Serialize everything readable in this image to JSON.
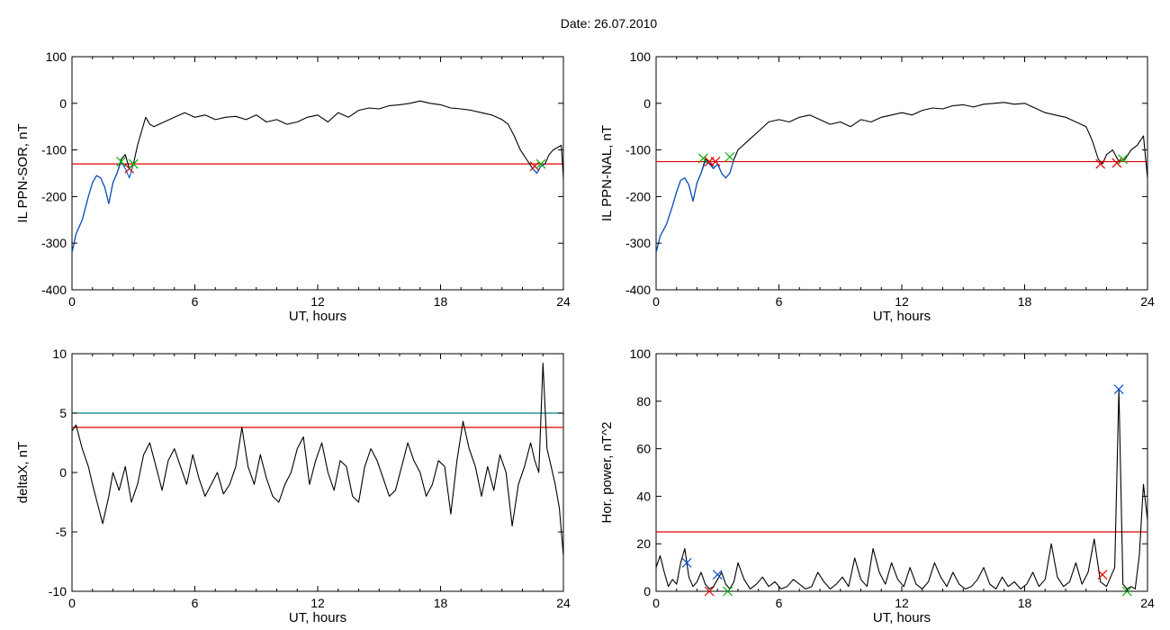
{
  "figure": {
    "title": "Date:  26.07.2010"
  },
  "colors": {
    "black": "#000000",
    "red": "#e00000",
    "blue": "#0050d0",
    "green": "#00b000",
    "teal": "#008080"
  },
  "chart_data": [
    {
      "type": "line",
      "id": "tl",
      "ylabel": "IL PPN-SOR, nT",
      "xlabel": "UT, hours",
      "xlim": [
        0,
        24
      ],
      "ylim": [
        -400,
        100
      ],
      "xticks": [
        0,
        6,
        12,
        18,
        24
      ],
      "xtick_labels": [
        "0",
        "6",
        "12",
        "18",
        "24"
      ],
      "yticks": [
        -400,
        -300,
        -200,
        -100,
        0,
        100
      ],
      "ytick_labels": [
        "-400",
        "-300",
        "-200",
        "-100",
        "0",
        "100"
      ],
      "threshold": -130,
      "series": [
        {
          "color": "#000000",
          "x": [
            0,
            0.2,
            0.5,
            0.8,
            1.0,
            1.2,
            1.4,
            1.6,
            1.8,
            2.0,
            2.2,
            2.4,
            2.6,
            2.8,
            3.0,
            3.2,
            3.4,
            3.6,
            3.8,
            4.0,
            4.5,
            5.0,
            5.5,
            6.0,
            6.5,
            7.0,
            7.5,
            8.0,
            8.5,
            9.0,
            9.5,
            10.0,
            10.5,
            11.0,
            11.5,
            12.0,
            12.5,
            13.0,
            13.5,
            14.0,
            14.5,
            15.0,
            15.5,
            16.0,
            16.5,
            17.0,
            17.5,
            18.0,
            18.5,
            19.0,
            19.5,
            20.0,
            20.5,
            21.0,
            21.3,
            21.6,
            21.9,
            22.2,
            22.5,
            22.7,
            22.9,
            23.1,
            23.3,
            23.5,
            23.7,
            23.9,
            24.0
          ],
          "y": [
            -320,
            -280,
            -250,
            -200,
            -170,
            -155,
            -160,
            -180,
            -215,
            -170,
            -150,
            -120,
            -110,
            -140,
            -130,
            -90,
            -60,
            -30,
            -45,
            -50,
            -40,
            -30,
            -20,
            -30,
            -25,
            -35,
            -30,
            -28,
            -35,
            -25,
            -40,
            -35,
            -45,
            -40,
            -30,
            -25,
            -40,
            -20,
            -30,
            -15,
            -10,
            -12,
            -5,
            -3,
            0,
            5,
            0,
            -3,
            -10,
            -12,
            -15,
            -20,
            -25,
            -35,
            -45,
            -70,
            -100,
            -120,
            -140,
            -150,
            -135,
            -130,
            -110,
            -100,
            -95,
            -90,
            -160
          ]
        },
        {
          "color": "#0050d0",
          "x": [
            0,
            0.2,
            0.5,
            0.8,
            1.0,
            1.2,
            1.4,
            1.6,
            1.8,
            2.0,
            2.2,
            2.4,
            2.6,
            2.8,
            3.0
          ],
          "y": [
            -320,
            -280,
            -250,
            -200,
            -170,
            -155,
            -160,
            -180,
            -215,
            -170,
            -150,
            -125,
            -140,
            -160,
            -130
          ]
        },
        {
          "color": "#0050d0",
          "x": [
            22.5,
            22.7,
            22.9,
            23.1
          ],
          "y": [
            -140,
            -150,
            -135,
            -130
          ]
        }
      ],
      "markers": [
        {
          "x": 2.4,
          "y": -125,
          "color": "#00b000"
        },
        {
          "x": 2.8,
          "y": -140,
          "color": "#e00000"
        },
        {
          "x": 3.0,
          "y": -130,
          "color": "#00b000"
        },
        {
          "x": 22.6,
          "y": -135,
          "color": "#e00000"
        },
        {
          "x": 22.9,
          "y": -130,
          "color": "#00b000"
        }
      ]
    },
    {
      "type": "line",
      "id": "tr",
      "ylabel": "IL PPN-NAL, nT",
      "xlabel": "UT, hours",
      "xlim": [
        0,
        24
      ],
      "ylim": [
        -400,
        100
      ],
      "xticks": [
        0,
        6,
        12,
        18,
        24
      ],
      "xtick_labels": [
        "0",
        "6",
        "12",
        "18",
        "24"
      ],
      "yticks": [
        -400,
        -300,
        -200,
        -100,
        0,
        100
      ],
      "ytick_labels": [
        "-400",
        "-300",
        "-200",
        "-100",
        "0",
        "100"
      ],
      "threshold": -125,
      "series": [
        {
          "color": "#000000",
          "x": [
            0,
            0.2,
            0.5,
            0.8,
            1.0,
            1.2,
            1.4,
            1.6,
            1.8,
            2.0,
            2.2,
            2.4,
            2.6,
            2.8,
            3.0,
            3.2,
            3.4,
            3.6,
            3.8,
            4.0,
            4.5,
            5.0,
            5.5,
            6.0,
            6.5,
            7.0,
            7.5,
            8.0,
            8.5,
            9.0,
            9.5,
            10.0,
            10.5,
            11.0,
            11.5,
            12.0,
            12.5,
            13.0,
            13.5,
            14.0,
            14.5,
            15.0,
            15.5,
            16.0,
            16.5,
            17.0,
            17.5,
            18.0,
            18.5,
            19.0,
            19.5,
            20.0,
            20.5,
            21.0,
            21.3,
            21.6,
            21.8,
            22.0,
            22.3,
            22.6,
            22.9,
            23.2,
            23.5,
            23.8,
            24.0
          ],
          "y": [
            -320,
            -285,
            -260,
            -220,
            -190,
            -165,
            -160,
            -175,
            -210,
            -170,
            -150,
            -120,
            -125,
            -140,
            -130,
            -150,
            -160,
            -150,
            -120,
            -100,
            -80,
            -60,
            -40,
            -35,
            -40,
            -30,
            -25,
            -35,
            -45,
            -40,
            -50,
            -35,
            -40,
            -30,
            -25,
            -20,
            -25,
            -15,
            -10,
            -12,
            -5,
            -3,
            -8,
            -2,
            0,
            2,
            -2,
            0,
            -10,
            -20,
            -25,
            -30,
            -40,
            -50,
            -80,
            -120,
            -130,
            -110,
            -100,
            -125,
            -120,
            -100,
            -90,
            -70,
            -160
          ]
        },
        {
          "color": "#0050d0",
          "x": [
            0,
            0.2,
            0.5,
            0.8,
            1.0,
            1.2,
            1.4,
            1.6,
            1.8,
            2.0,
            2.2,
            2.4,
            2.6,
            2.8,
            3.0,
            3.2,
            3.4,
            3.6,
            3.8
          ],
          "y": [
            -320,
            -285,
            -260,
            -220,
            -190,
            -165,
            -160,
            -175,
            -210,
            -170,
            -150,
            -125,
            -130,
            -140,
            -130,
            -150,
            -160,
            -150,
            -120
          ]
        }
      ],
      "markers": [
        {
          "x": 2.3,
          "y": -118,
          "color": "#00b000"
        },
        {
          "x": 2.6,
          "y": -125,
          "color": "#e00000"
        },
        {
          "x": 2.9,
          "y": -125,
          "color": "#e00000"
        },
        {
          "x": 3.6,
          "y": -115,
          "color": "#00b000"
        },
        {
          "x": 21.7,
          "y": -130,
          "color": "#e00000"
        },
        {
          "x": 22.5,
          "y": -128,
          "color": "#e00000"
        },
        {
          "x": 22.8,
          "y": -120,
          "color": "#00b000"
        }
      ]
    },
    {
      "type": "line",
      "id": "bl",
      "ylabel": "deltaX, nT",
      "xlabel": "UT, hours",
      "xlim": [
        0,
        24
      ],
      "ylim": [
        -10,
        10
      ],
      "xticks": [
        0,
        6,
        12,
        18,
        24
      ],
      "xtick_labels": [
        "0",
        "6",
        "12",
        "18",
        "24"
      ],
      "yticks": [
        -10,
        -5,
        0,
        5,
        10
      ],
      "ytick_labels": [
        "-10",
        "-5",
        "0",
        "5",
        "10"
      ],
      "threshold": 3.8,
      "threshold2": 5.0,
      "series": [
        {
          "color": "#000000",
          "x": [
            0,
            0.2,
            0.5,
            0.8,
            1.0,
            1.3,
            1.5,
            1.8,
            2.0,
            2.3,
            2.6,
            2.9,
            3.2,
            3.5,
            3.8,
            4.1,
            4.4,
            4.7,
            5.0,
            5.3,
            5.6,
            5.9,
            6.2,
            6.5,
            6.8,
            7.1,
            7.4,
            7.7,
            8.0,
            8.3,
            8.6,
            8.9,
            9.2,
            9.5,
            9.8,
            10.1,
            10.4,
            10.7,
            11.0,
            11.3,
            11.6,
            11.9,
            12.2,
            12.5,
            12.8,
            13.1,
            13.4,
            13.7,
            14.0,
            14.3,
            14.6,
            14.9,
            15.2,
            15.5,
            15.8,
            16.1,
            16.4,
            16.7,
            17.0,
            17.3,
            17.6,
            17.9,
            18.2,
            18.5,
            18.8,
            19.1,
            19.4,
            19.7,
            20.0,
            20.3,
            20.6,
            20.9,
            21.2,
            21.5,
            21.8,
            22.1,
            22.4,
            22.6,
            22.8,
            23.0,
            23.2,
            23.4,
            23.6,
            23.8,
            24.0
          ],
          "y": [
            3.5,
            4.0,
            2.0,
            0.5,
            -1.0,
            -3.0,
            -4.3,
            -2.0,
            0.0,
            -1.5,
            0.5,
            -2.5,
            -1.0,
            1.5,
            2.5,
            0.5,
            -1.5,
            1.0,
            2.0,
            0.5,
            -1.0,
            1.5,
            -0.5,
            -2.0,
            -1.0,
            0.0,
            -1.8,
            -1.0,
            0.5,
            3.8,
            0.5,
            -1.0,
            1.5,
            -0.5,
            -2.0,
            -2.5,
            -1.0,
            0.0,
            2.0,
            3.0,
            -1.0,
            1.0,
            2.5,
            0.0,
            -1.5,
            1.0,
            0.5,
            -2.0,
            -2.5,
            0.5,
            2.0,
            1.0,
            -0.5,
            -2.0,
            -1.5,
            0.5,
            2.5,
            1.0,
            0.0,
            -2.0,
            -1.0,
            1.0,
            0.5,
            -3.5,
            1.0,
            4.3,
            2.0,
            0.5,
            -2.0,
            0.5,
            -1.5,
            1.5,
            0.0,
            -4.5,
            -1.0,
            0.5,
            2.5,
            1.0,
            0.0,
            9.2,
            2.0,
            0.5,
            -1.0,
            -3.0,
            -7.0
          ]
        }
      ],
      "markers": []
    },
    {
      "type": "line",
      "id": "br",
      "ylabel": "Hor. power, nT^2",
      "xlabel": "UT, hours",
      "xlim": [
        0,
        24
      ],
      "ylim": [
        0,
        100
      ],
      "xticks": [
        0,
        6,
        12,
        18,
        24
      ],
      "xtick_labels": [
        "0",
        "6",
        "12",
        "18",
        "24"
      ],
      "yticks": [
        0,
        20,
        40,
        60,
        80,
        100
      ],
      "ytick_labels": [
        "0",
        "20",
        "40",
        "60",
        "80",
        "100"
      ],
      "threshold": 25,
      "series": [
        {
          "color": "#000000",
          "x": [
            0,
            0.2,
            0.4,
            0.6,
            0.8,
            1.0,
            1.2,
            1.4,
            1.6,
            1.8,
            2.0,
            2.2,
            2.4,
            2.6,
            2.8,
            3.0,
            3.2,
            3.4,
            3.6,
            3.8,
            4.0,
            4.3,
            4.6,
            4.9,
            5.2,
            5.5,
            5.8,
            6.1,
            6.4,
            6.7,
            7.0,
            7.3,
            7.6,
            7.9,
            8.2,
            8.5,
            8.8,
            9.1,
            9.4,
            9.7,
            10.0,
            10.3,
            10.6,
            10.9,
            11.2,
            11.5,
            11.8,
            12.1,
            12.4,
            12.7,
            13.0,
            13.3,
            13.6,
            13.9,
            14.2,
            14.5,
            14.8,
            15.1,
            15.4,
            15.7,
            16.0,
            16.3,
            16.6,
            16.9,
            17.2,
            17.5,
            17.8,
            18.1,
            18.4,
            18.7,
            19.0,
            19.3,
            19.6,
            19.9,
            20.2,
            20.5,
            20.8,
            21.1,
            21.4,
            21.7,
            22.0,
            22.2,
            22.4,
            22.6,
            22.8,
            23.0,
            23.2,
            23.4,
            23.6,
            23.8,
            24.0
          ],
          "y": [
            10,
            15,
            8,
            2,
            5,
            3,
            12,
            18,
            6,
            2,
            4,
            8,
            3,
            1,
            2,
            5,
            8,
            3,
            1,
            4,
            12,
            5,
            1,
            3,
            6,
            2,
            4,
            1,
            2,
            5,
            3,
            1,
            2,
            8,
            4,
            1,
            3,
            6,
            2,
            14,
            5,
            2,
            18,
            8,
            3,
            12,
            5,
            2,
            10,
            3,
            1,
            4,
            12,
            6,
            2,
            8,
            3,
            1,
            2,
            5,
            10,
            3,
            1,
            6,
            2,
            4,
            1,
            3,
            8,
            2,
            5,
            20,
            6,
            2,
            4,
            12,
            3,
            8,
            22,
            4,
            2,
            6,
            10,
            85,
            3,
            1,
            2,
            1,
            15,
            45,
            30
          ]
        }
      ],
      "markers": [
        {
          "x": 1.5,
          "y": 12,
          "color": "#0050d0"
        },
        {
          "x": 2.6,
          "y": 0,
          "color": "#e00000"
        },
        {
          "x": 3.0,
          "y": 7,
          "color": "#0050d0"
        },
        {
          "x": 3.5,
          "y": 0,
          "color": "#00b000"
        },
        {
          "x": 21.8,
          "y": 7,
          "color": "#e00000"
        },
        {
          "x": 22.6,
          "y": 85,
          "color": "#0050d0"
        },
        {
          "x": 23.0,
          "y": 0,
          "color": "#00b000"
        }
      ]
    }
  ]
}
